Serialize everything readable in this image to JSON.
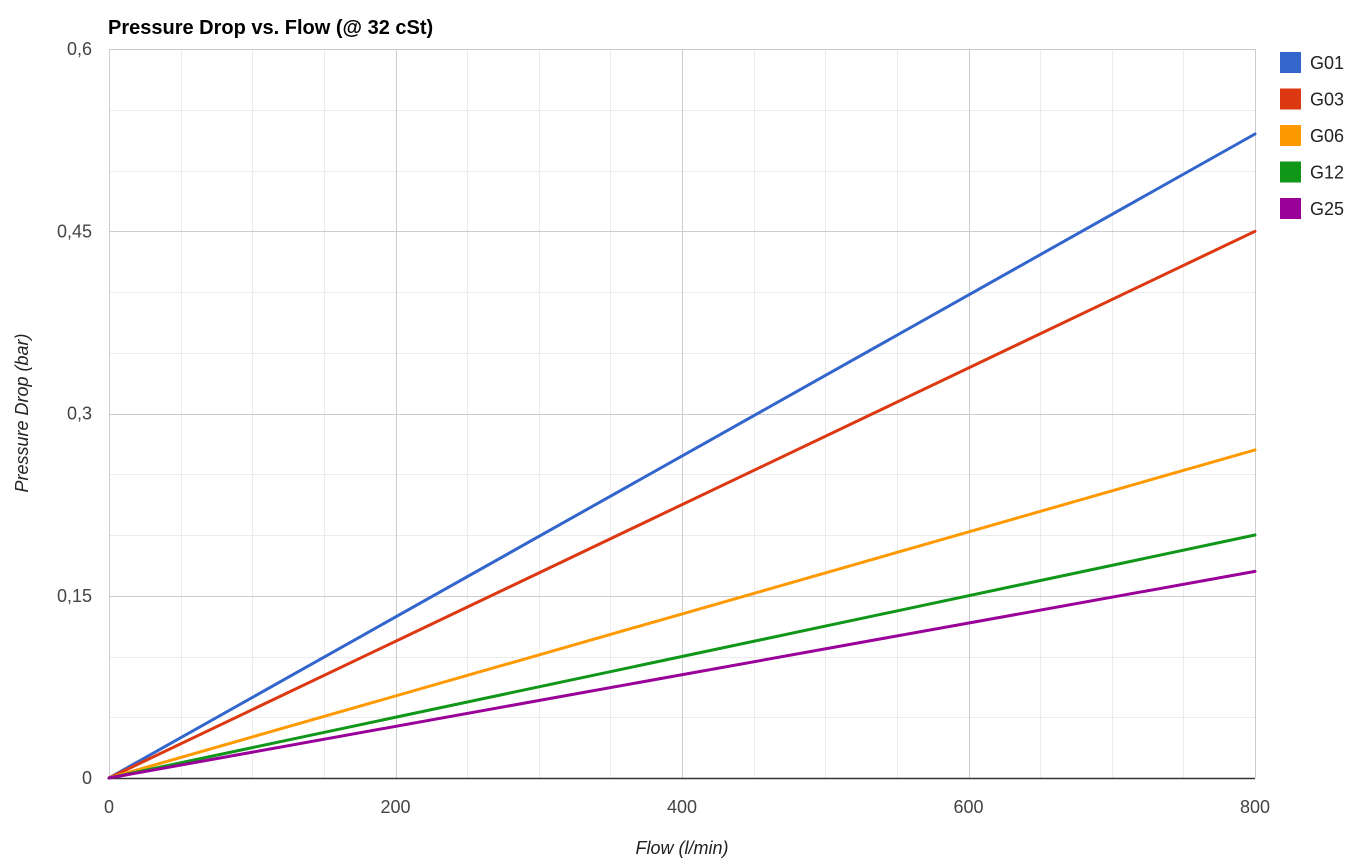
{
  "chart_data": {
    "type": "line",
    "title": "Pressure Drop vs. Flow (@ 32 cSt)",
    "xlabel": "Flow (l/min)",
    "ylabel": "Pressure Drop (bar)",
    "xlim": [
      0,
      800
    ],
    "ylim": [
      0,
      0.6
    ],
    "x_ticks": [
      {
        "value": 0,
        "label": "0"
      },
      {
        "value": 200,
        "label": "200"
      },
      {
        "value": 400,
        "label": "400"
      },
      {
        "value": 600,
        "label": "600"
      },
      {
        "value": 800,
        "label": "800"
      }
    ],
    "y_ticks": [
      {
        "value": 0,
        "label": "0"
      },
      {
        "value": 0.15,
        "label": "0,15"
      },
      {
        "value": 0.3,
        "label": "0,3"
      },
      {
        "value": 0.45,
        "label": "0,45"
      },
      {
        "value": 0.6,
        "label": "0,6"
      }
    ],
    "x_minor_step": 50,
    "y_minor_step": 0.05,
    "grid": true,
    "legend_position": "right",
    "x": [
      0,
      800
    ],
    "series": [
      {
        "name": "G01",
        "color": "#3366cc",
        "values": [
          0,
          0.53
        ]
      },
      {
        "name": "G03",
        "color": "#dc3912",
        "values": [
          0,
          0.45
        ]
      },
      {
        "name": "G06",
        "color": "#ff9900",
        "values": [
          0,
          0.27
        ]
      },
      {
        "name": "G12",
        "color": "#109618",
        "values": [
          0,
          0.2
        ]
      },
      {
        "name": "G25",
        "color": "#990099",
        "values": [
          0,
          0.17
        ]
      }
    ]
  }
}
